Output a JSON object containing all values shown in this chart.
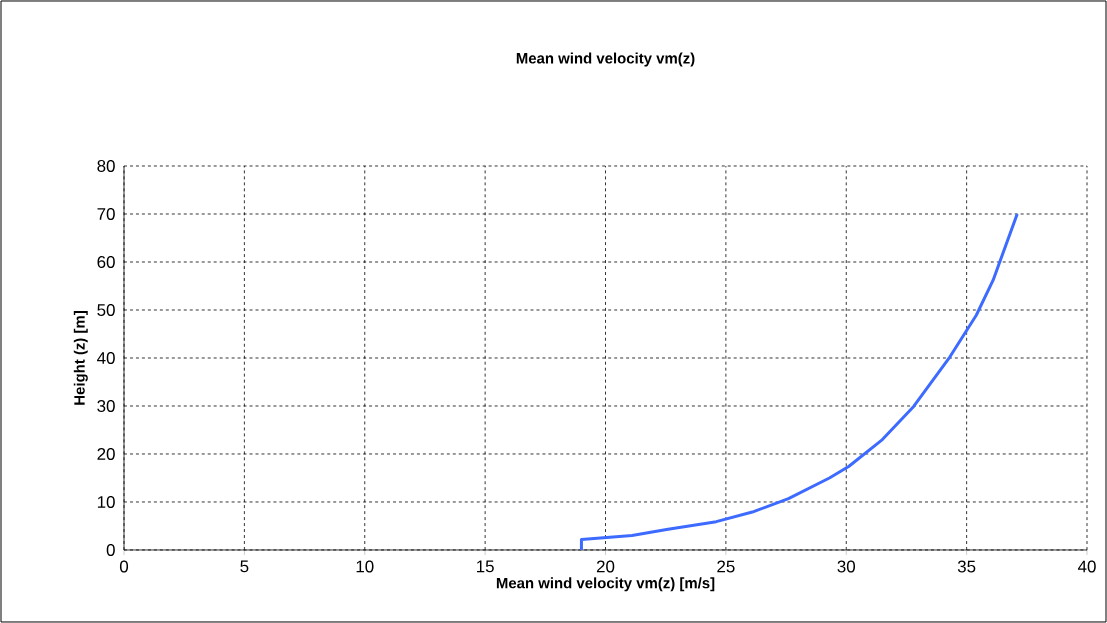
{
  "chart_data": {
    "type": "line",
    "title": "Mean wind velocity vm(z)",
    "xlabel": "Mean wind velocity vm(z)  [m/s]",
    "ylabel": "Height (z) [m]",
    "series": [
      {
        "color": "#3d6bff",
        "x": [
          19,
          19,
          21.1,
          22.6,
          24.6,
          26.1,
          27.6,
          29.3,
          30.1,
          31.5,
          32.8,
          34.3,
          35.4,
          36.1,
          37.1
        ],
        "values": [
          0,
          2.2,
          3,
          4.3,
          5.9,
          7.9,
          10.7,
          15,
          17.4,
          23,
          29.9,
          40.2,
          48.9,
          56.2,
          70
        ]
      }
    ],
    "xlim": [
      0,
      40
    ],
    "ylim": [
      0,
      80
    ],
    "xticks": [
      0,
      5,
      10,
      15,
      20,
      25,
      30,
      35,
      40
    ],
    "yticks": [
      0,
      10,
      20,
      30,
      40,
      50,
      60,
      70,
      80
    ],
    "grid": true,
    "marker": "none",
    "line_style": "solid"
  }
}
